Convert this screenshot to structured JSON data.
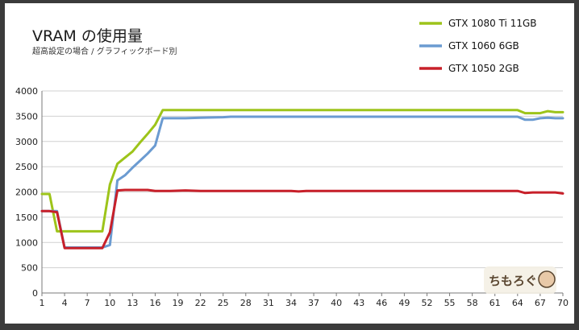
{
  "title": "VRAM の使用量",
  "subtitle": "超高設定の場合 / グラフィックボード別",
  "watermark": "ちもろぐ",
  "chart_data": {
    "type": "line",
    "title": "VRAM の使用量",
    "subtitle": "超高設定の場合 / グラフィックボード別",
    "xlabel": "",
    "ylabel": "",
    "xlim": [
      1,
      70
    ],
    "ylim": [
      0,
      4000
    ],
    "y_ticks": [
      0,
      500,
      1000,
      1500,
      2000,
      2500,
      3000,
      3500,
      4000
    ],
    "x_ticks": [
      1,
      4,
      7,
      10,
      13,
      16,
      19,
      22,
      25,
      28,
      31,
      34,
      37,
      40,
      43,
      46,
      49,
      52,
      55,
      58,
      61,
      64,
      67,
      70
    ],
    "grid": true,
    "legend_position": "top-right",
    "series": [
      {
        "name": "GTX 1080 Ti 11GB",
        "color": "#9dc41a",
        "points": [
          [
            1,
            1960
          ],
          [
            2,
            1960
          ],
          [
            3,
            1220
          ],
          [
            4,
            1220
          ],
          [
            5,
            1220
          ],
          [
            6,
            1220
          ],
          [
            7,
            1220
          ],
          [
            8,
            1220
          ],
          [
            9,
            1220
          ],
          [
            10,
            2150
          ],
          [
            11,
            2560
          ],
          [
            12,
            2680
          ],
          [
            13,
            2800
          ],
          [
            14,
            2980
          ],
          [
            15,
            3150
          ],
          [
            16,
            3330
          ],
          [
            17,
            3620
          ],
          [
            18,
            3620
          ],
          [
            25,
            3620
          ],
          [
            40,
            3620
          ],
          [
            55,
            3620
          ],
          [
            64,
            3620
          ],
          [
            65,
            3560
          ],
          [
            66,
            3560
          ],
          [
            67,
            3560
          ],
          [
            68,
            3600
          ],
          [
            69,
            3580
          ],
          [
            70,
            3580
          ]
        ]
      },
      {
        "name": "GTX 1060 6GB",
        "color": "#6b9bd1",
        "points": [
          [
            1,
            1620
          ],
          [
            2,
            1620
          ],
          [
            3,
            1620
          ],
          [
            4,
            900
          ],
          [
            5,
            900
          ],
          [
            6,
            900
          ],
          [
            7,
            900
          ],
          [
            8,
            900
          ],
          [
            9,
            900
          ],
          [
            10,
            950
          ],
          [
            11,
            2230
          ],
          [
            12,
            2330
          ],
          [
            13,
            2480
          ],
          [
            14,
            2620
          ],
          [
            15,
            2760
          ],
          [
            16,
            2920
          ],
          [
            17,
            3460
          ],
          [
            18,
            3460
          ],
          [
            20,
            3460
          ],
          [
            22,
            3470
          ],
          [
            25,
            3480
          ],
          [
            26,
            3490
          ],
          [
            40,
            3490
          ],
          [
            55,
            3490
          ],
          [
            64,
            3490
          ],
          [
            65,
            3430
          ],
          [
            66,
            3430
          ],
          [
            67,
            3460
          ],
          [
            68,
            3470
          ],
          [
            69,
            3460
          ],
          [
            70,
            3460
          ]
        ]
      },
      {
        "name": "GTX 1050 2GB",
        "color": "#c8202a",
        "points": [
          [
            1,
            1620
          ],
          [
            2,
            1620
          ],
          [
            3,
            1600
          ],
          [
            4,
            890
          ],
          [
            5,
            890
          ],
          [
            6,
            890
          ],
          [
            7,
            890
          ],
          [
            8,
            890
          ],
          [
            9,
            890
          ],
          [
            10,
            1200
          ],
          [
            11,
            2030
          ],
          [
            12,
            2040
          ],
          [
            13,
            2040
          ],
          [
            14,
            2040
          ],
          [
            15,
            2040
          ],
          [
            16,
            2020
          ],
          [
            18,
            2020
          ],
          [
            20,
            2030
          ],
          [
            22,
            2020
          ],
          [
            30,
            2020
          ],
          [
            34,
            2020
          ],
          [
            35,
            2010
          ],
          [
            36,
            2020
          ],
          [
            45,
            2020
          ],
          [
            55,
            2020
          ],
          [
            64,
            2020
          ],
          [
            65,
            1980
          ],
          [
            66,
            1990
          ],
          [
            67,
            1990
          ],
          [
            68,
            1990
          ],
          [
            69,
            1990
          ],
          [
            70,
            1970
          ]
        ]
      }
    ]
  }
}
